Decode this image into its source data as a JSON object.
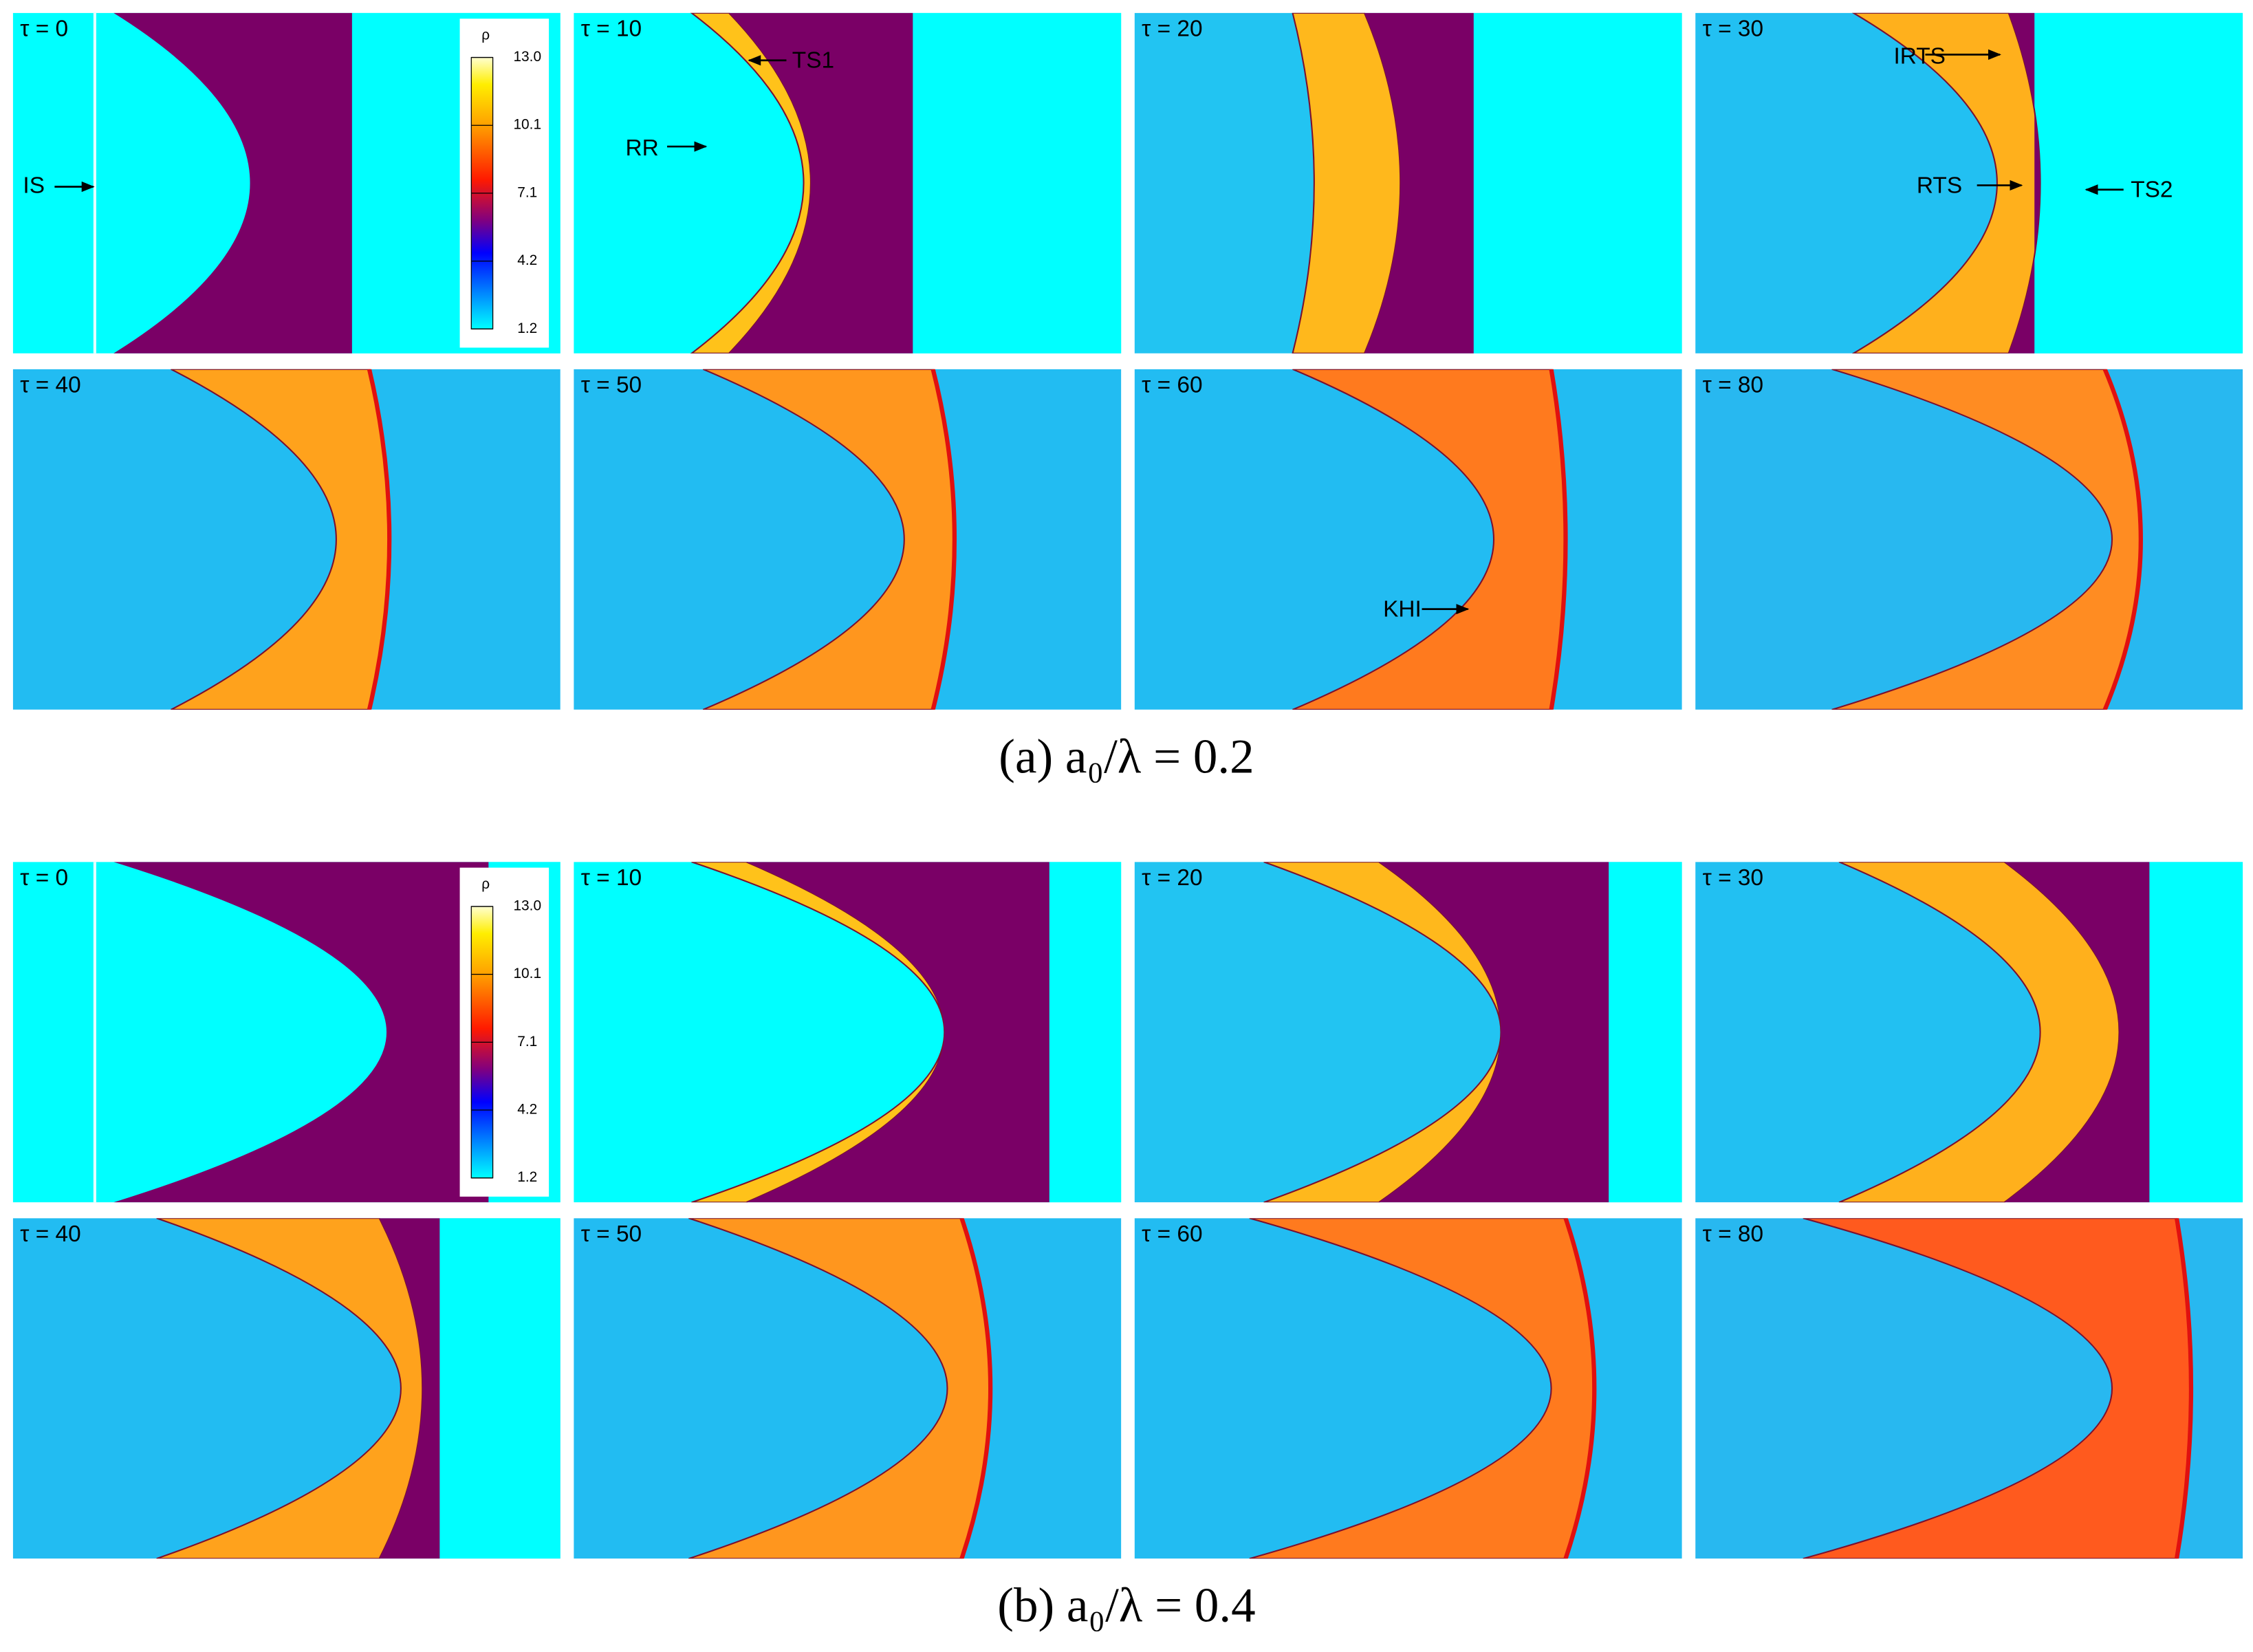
{
  "figures": [
    {
      "panels": [
        {
          "label": "τ = 0",
          "annotations": [
            "IS"
          ]
        },
        {
          "label": "τ = 10",
          "annotations": [
            "TS1",
            "RR"
          ]
        },
        {
          "label": "τ = 20",
          "annotations": []
        },
        {
          "label": "τ = 30",
          "annotations": [
            "IRTS",
            "RTS",
            "TS2"
          ]
        },
        {
          "label": "τ = 40",
          "annotations": []
        },
        {
          "label": "τ = 50",
          "annotations": []
        },
        {
          "label": "τ = 60",
          "annotations": [
            "KHI"
          ]
        },
        {
          "label": "τ = 80",
          "annotations": []
        }
      ],
      "colorbar": {
        "title": "ρ",
        "ticks": [
          "13.0",
          "10.1",
          "7.1",
          "4.2",
          "1.2"
        ]
      },
      "caption": "(a) a₀/λ = 0.2"
    },
    {
      "panels": [
        {
          "label": "τ = 0",
          "annotations": []
        },
        {
          "label": "τ = 10",
          "annotations": []
        },
        {
          "label": "τ = 20",
          "annotations": []
        },
        {
          "label": "τ = 30",
          "annotations": []
        },
        {
          "label": "τ = 40",
          "annotations": []
        },
        {
          "label": "τ = 50",
          "annotations": []
        },
        {
          "label": "τ = 60",
          "annotations": []
        },
        {
          "label": "τ = 80",
          "annotations": []
        }
      ],
      "colorbar": {
        "title": "ρ",
        "ticks": [
          "13.0",
          "10.1",
          "7.1",
          "4.2",
          "1.2"
        ]
      },
      "caption": "(b) a₀/λ = 0.4"
    }
  ]
}
